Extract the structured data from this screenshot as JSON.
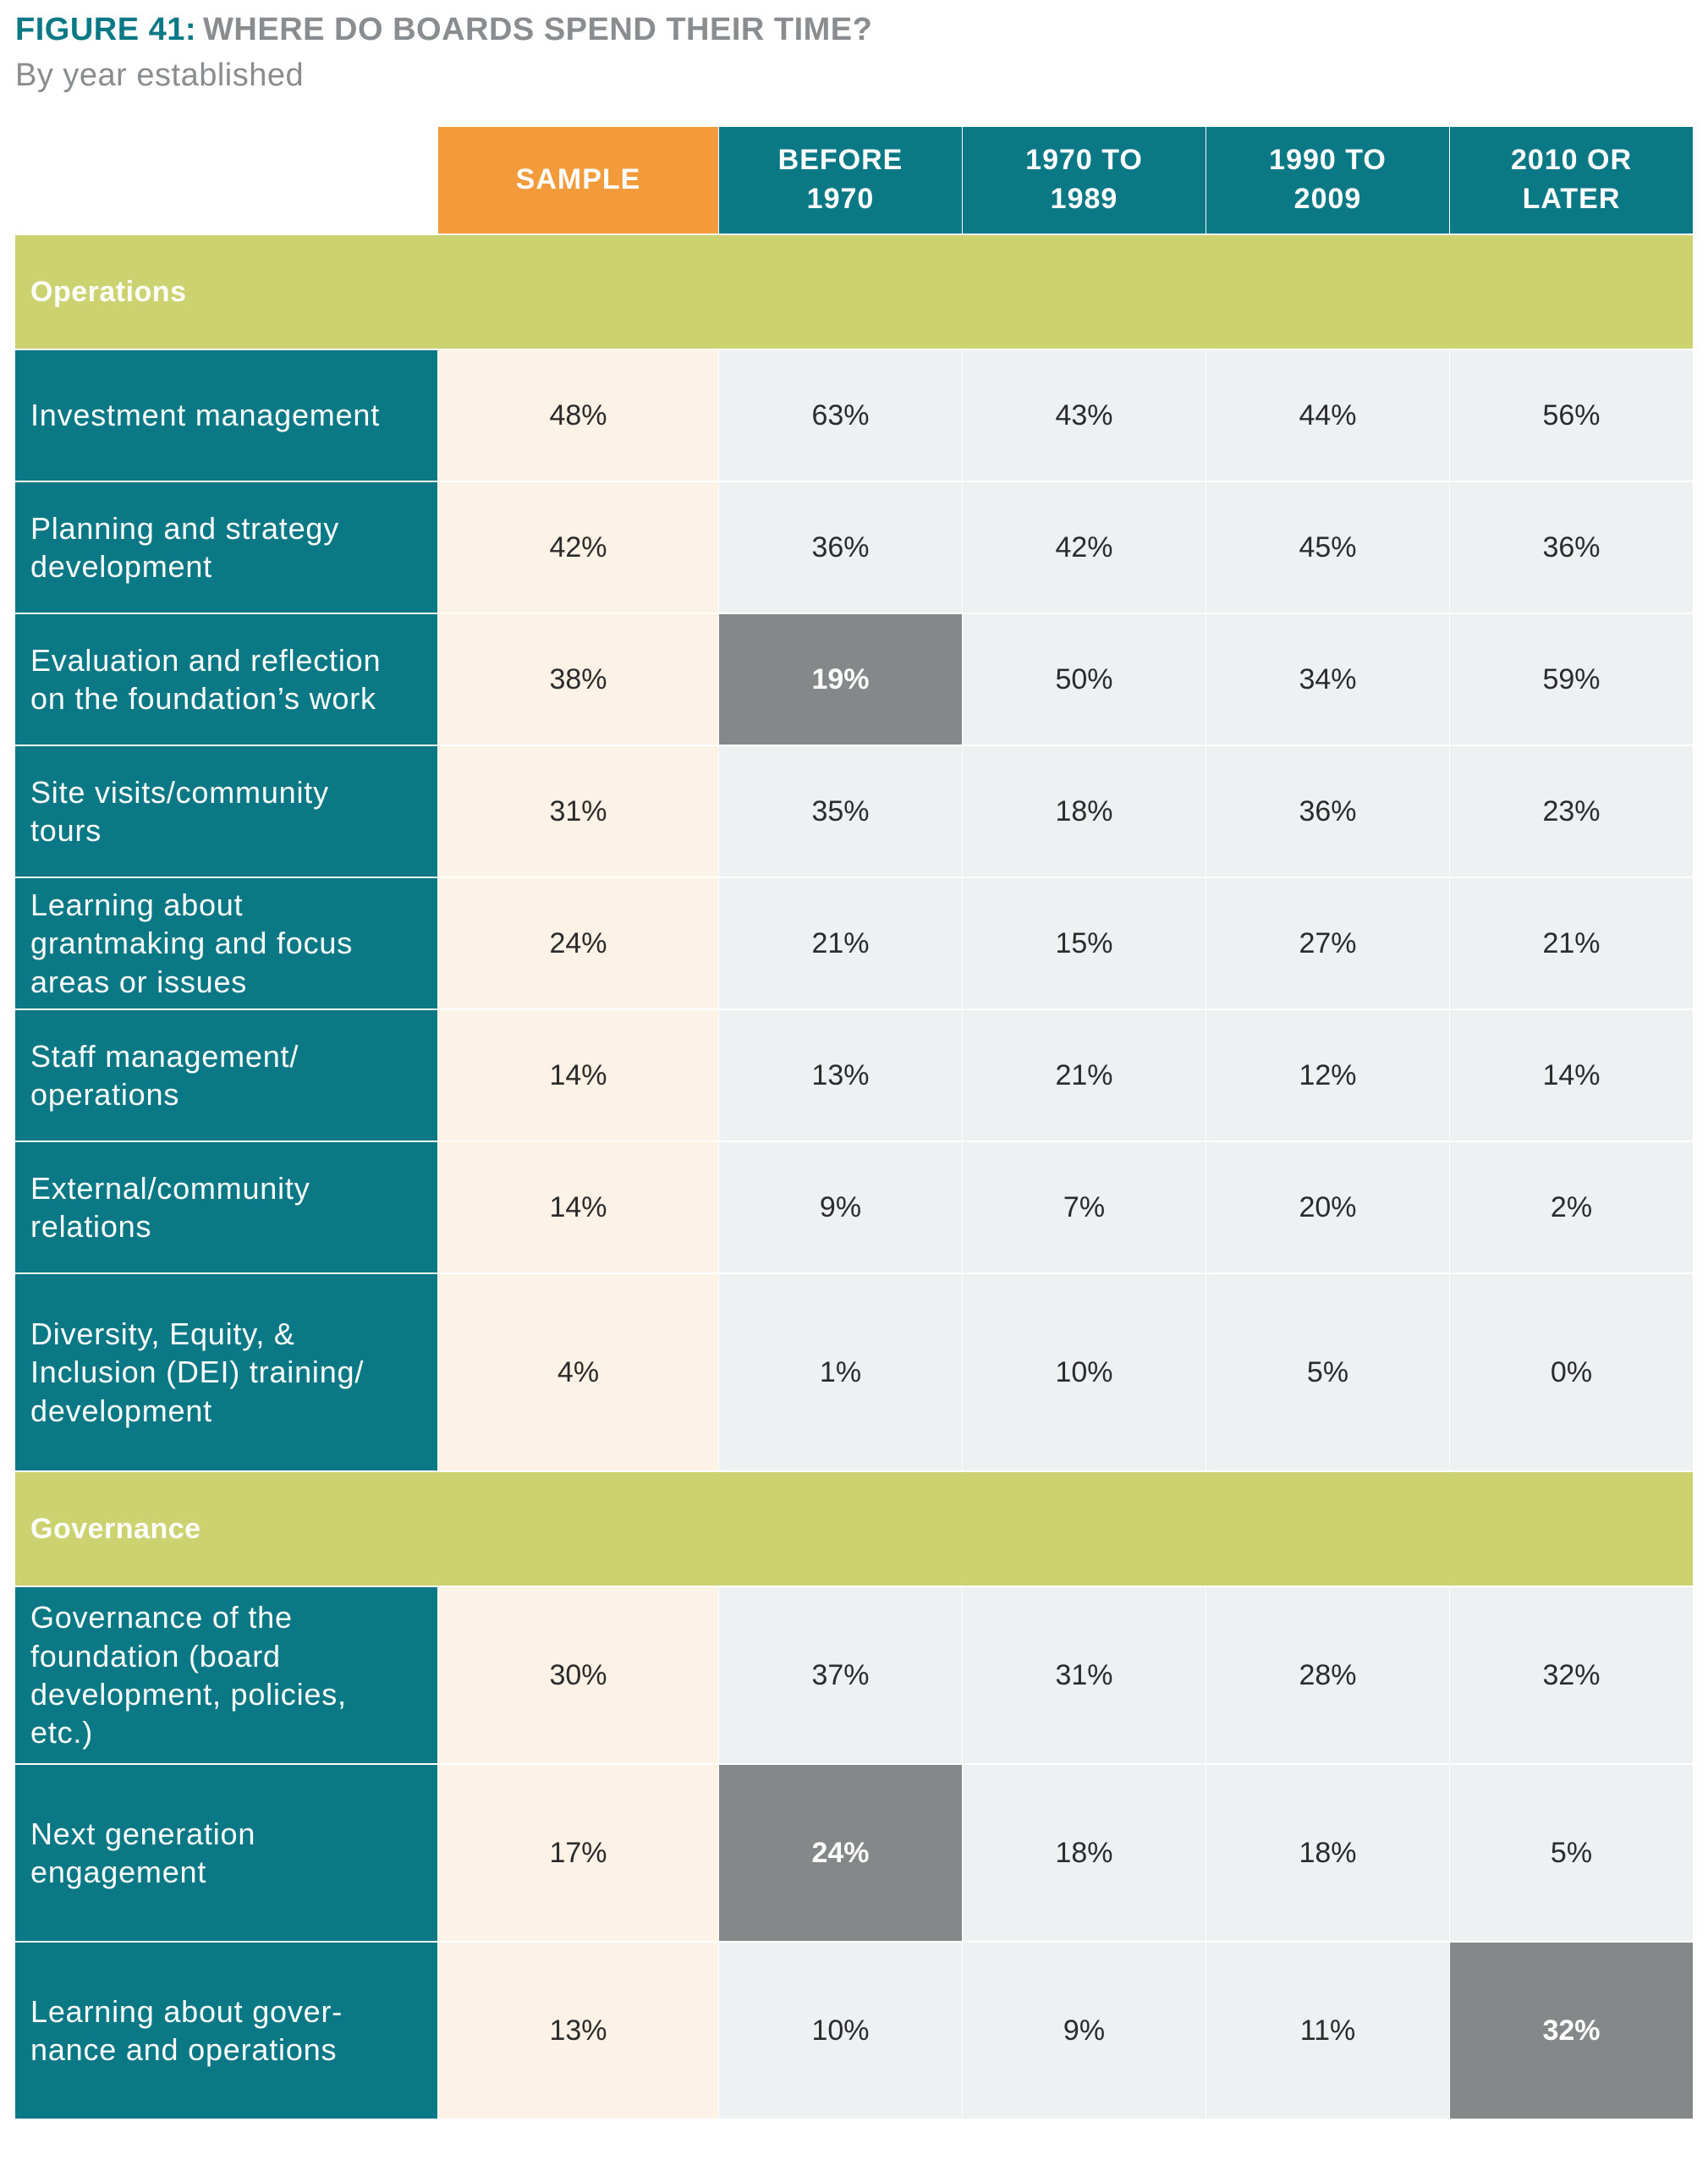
{
  "figure": {
    "number": "FIGURE 41:",
    "title": "WHERE DO BOARDS SPEND THEIR TIME?",
    "subtitle": "By year established"
  },
  "colors": {
    "teal": "#0b7985",
    "orange": "#f39a3b",
    "section_green": "#ccd26f",
    "sample_cell": "#fcf2e6",
    "cell": "#eef1f2",
    "highlight": "#848889"
  },
  "chart_data": {
    "type": "table",
    "title": "WHERE DO BOARDS SPEND THEIR TIME?",
    "subtitle": "By year established",
    "columns": [
      "SAMPLE",
      "BEFORE\n1970",
      "1970 TO\n1989",
      "1990 TO\n2009",
      "2010 OR\nLATER"
    ],
    "sections": [
      {
        "name": "Operations",
        "rows": [
          {
            "label": "Investment management",
            "values": [
              "48%",
              "63%",
              "43%",
              "44%",
              "56%"
            ],
            "highlight": []
          },
          {
            "label": "Planning and strategy\ndevelopment",
            "values": [
              "42%",
              "36%",
              "42%",
              "45%",
              "36%"
            ],
            "highlight": []
          },
          {
            "label": "Evaluation and reflection\non the foundation’s work",
            "values": [
              "38%",
              "19%",
              "50%",
              "34%",
              "59%"
            ],
            "highlight": [
              1
            ]
          },
          {
            "label": "Site visits/community\ntours",
            "values": [
              "31%",
              "35%",
              "18%",
              "36%",
              "23%"
            ],
            "highlight": []
          },
          {
            "label": "Learning about\ngrantmaking and focus\nareas or issues",
            "values": [
              "24%",
              "21%",
              "15%",
              "27%",
              "21%"
            ],
            "highlight": []
          },
          {
            "label": "Staff management/\noperations",
            "values": [
              "14%",
              "13%",
              "21%",
              "12%",
              "14%"
            ],
            "highlight": []
          },
          {
            "label": "External/community\nrelations",
            "values": [
              "14%",
              "9%",
              "7%",
              "20%",
              "2%"
            ],
            "highlight": []
          },
          {
            "label": "Diversity, Equity, &\nInclusion (DEI) training/\ndevelopment",
            "values": [
              "4%",
              "1%",
              "10%",
              "5%",
              "0%"
            ],
            "highlight": []
          }
        ]
      },
      {
        "name": "Governance",
        "rows": [
          {
            "label": "Governance of the\nfoundation (board\ndevelopment, policies,\netc.)",
            "values": [
              "30%",
              "37%",
              "31%",
              "28%",
              "32%"
            ],
            "highlight": []
          },
          {
            "label": "Next generation\nengagement",
            "values": [
              "17%",
              "24%",
              "18%",
              "18%",
              "5%"
            ],
            "highlight": [
              1
            ]
          },
          {
            "label": "Learning about gover-\nnance and operations",
            "values": [
              "13%",
              "10%",
              "9%",
              "11%",
              "32%"
            ],
            "highlight": [
              4
            ]
          }
        ]
      }
    ]
  }
}
